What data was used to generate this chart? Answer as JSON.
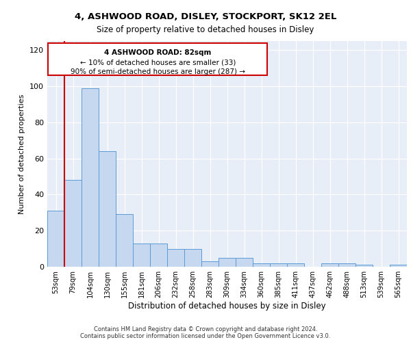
{
  "title1": "4, ASHWOOD ROAD, DISLEY, STOCKPORT, SK12 2EL",
  "title2": "Size of property relative to detached houses in Disley",
  "xlabel": "Distribution of detached houses by size in Disley",
  "ylabel": "Number of detached properties",
  "footer1": "Contains HM Land Registry data © Crown copyright and database right 2024.",
  "footer2": "Contains public sector information licensed under the Open Government Licence v3.0.",
  "annotation_line1": "4 ASHWOOD ROAD: 82sqm",
  "annotation_line2": "← 10% of detached houses are smaller (33)",
  "annotation_line3": "90% of semi-detached houses are larger (287) →",
  "bar_color": "#c5d8f0",
  "bar_edge_color": "#5b9bd5",
  "redline_color": "#cc0000",
  "annotation_box_color": "#ffffff",
  "annotation_box_edge": "#cc0000",
  "bg_color": "#e8eef7",
  "categories": [
    "53sqm",
    "79sqm",
    "104sqm",
    "130sqm",
    "155sqm",
    "181sqm",
    "206sqm",
    "232sqm",
    "258sqm",
    "283sqm",
    "309sqm",
    "334sqm",
    "360sqm",
    "385sqm",
    "411sqm",
    "437sqm",
    "462sqm",
    "488sqm",
    "513sqm",
    "539sqm",
    "565sqm"
  ],
  "values": [
    31,
    48,
    99,
    64,
    29,
    13,
    13,
    10,
    10,
    3,
    5,
    5,
    2,
    2,
    2,
    0,
    2,
    2,
    1,
    0,
    1
  ],
  "ylim": [
    0,
    125
  ],
  "yticks": [
    0,
    20,
    40,
    60,
    80,
    100,
    120
  ]
}
